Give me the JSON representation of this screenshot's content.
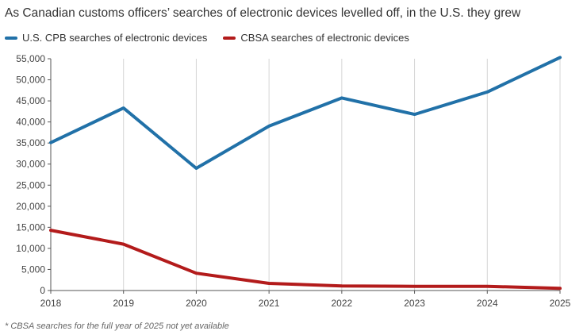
{
  "title": "As Canadian customs officers’ searches of electronic devices levelled off, in the U.S. they grew",
  "footnote": "* CBSA searches for the full year of 2025 not yet available",
  "colors": {
    "us": "#2171a8",
    "cbsa": "#b31b1b"
  },
  "chart_data": {
    "type": "line",
    "title": "As Canadian customs officers’ searches of electronic devices levelled off, in the U.S. they grew",
    "x": [
      "2018",
      "2019",
      "2020",
      "2021",
      "2022",
      "2023",
      "2024",
      "2025"
    ],
    "series": [
      {
        "name": "U.S. CPB searches of electronic devices",
        "color": "#2171a8",
        "values": [
          35100,
          43300,
          29000,
          39000,
          45700,
          41800,
          47100,
          55300
        ]
      },
      {
        "name": "CBSA searches of electronic devices",
        "color": "#b31b1b",
        "values": [
          14300,
          11000,
          4100,
          1700,
          1100,
          1000,
          1000,
          500
        ]
      }
    ],
    "y_ticks": [
      "0",
      "5,000",
      "10,000",
      "15,000",
      "20,000",
      "25,000",
      "30,000",
      "35,000",
      "40,000",
      "45,000",
      "50,000",
      "55,000"
    ],
    "ylim": [
      0,
      55000
    ],
    "grid": "vertical",
    "legend_position": "top-left"
  }
}
